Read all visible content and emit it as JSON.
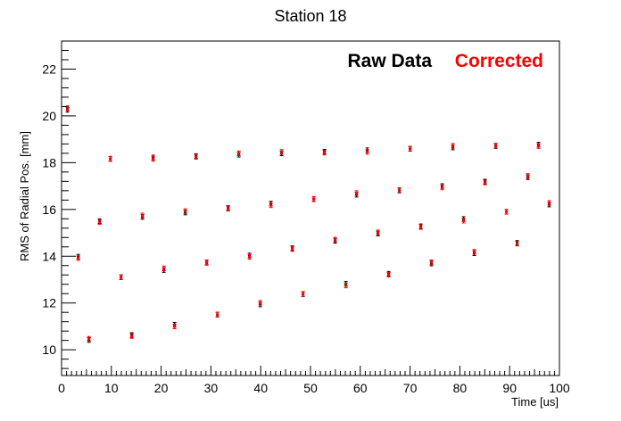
{
  "chart_data": {
    "type": "scatter",
    "title": "Station 18",
    "xlabel": "Time [us]",
    "ylabel": "RMS of Radial Pos. [mm]",
    "xlim": [
      0,
      100
    ],
    "ylim": [
      8.9,
      23.2
    ],
    "x_ticks": [
      0,
      10,
      20,
      30,
      40,
      50,
      60,
      70,
      80,
      90,
      100
    ],
    "y_ticks": [
      10,
      12,
      14,
      16,
      18,
      20,
      22
    ],
    "grid": false,
    "legend": "top-right",
    "series": [
      {
        "name": "Raw Data",
        "color": "#000000",
        "points": []
      },
      {
        "name": "Corrected",
        "color": "#ff0000",
        "points": []
      }
    ]
  }
}
